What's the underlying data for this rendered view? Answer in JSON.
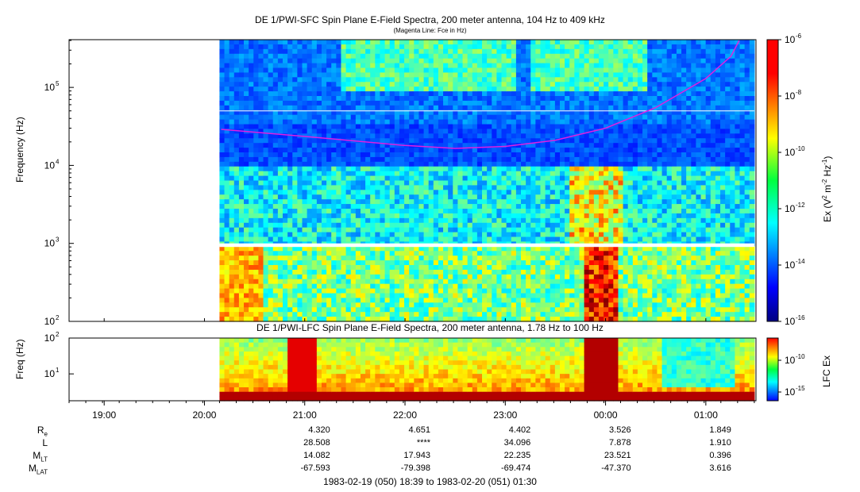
{
  "panels": {
    "sfc": {
      "title": "DE 1/PWI-SFC  Spin Plane E-Field Spectra, 200 meter antenna, 104 Hz to 409 kHz",
      "subtitle": "(Magenta Line: Fce in Hz)",
      "ylabel": "Frequency (Hz)",
      "colorbar_label_parts": [
        "Ex (V",
        "2",
        " m",
        "-2",
        " Hz",
        "-1",
        ")"
      ],
      "ytick_labels": [
        {
          "base": "10",
          "exp": "5",
          "value": 100000
        },
        {
          "base": "10",
          "exp": "4",
          "value": 10000
        },
        {
          "base": "10",
          "exp": "3",
          "value": 1000
        },
        {
          "base": "10",
          "exp": "2",
          "value": 100
        }
      ],
      "colorbar_ticks": [
        {
          "base": "10",
          "exp": "-6"
        },
        {
          "base": "10",
          "exp": "-8"
        },
        {
          "base": "10",
          "exp": "-10"
        },
        {
          "base": "10",
          "exp": "-12"
        },
        {
          "base": "10",
          "exp": "-14"
        },
        {
          "base": "10",
          "exp": "-16"
        }
      ]
    },
    "lfc": {
      "title": "DE 1/PWI-LFC  Spin Plane E-Field Spectra, 200 meter antenna, 1.78 Hz to 100 Hz",
      "ylabel": "Freq (Hz)",
      "colorbar_label": "LFC Ex",
      "ytick_labels": [
        {
          "base": "10",
          "exp": "2"
        },
        {
          "base": "10",
          "exp": "1"
        }
      ],
      "colorbar_ticks": [
        {
          "base": "10",
          "exp": "-10"
        },
        {
          "base": "10",
          "exp": "-15"
        }
      ]
    }
  },
  "time_axis": {
    "labels": [
      "19:00",
      "20:00",
      "21:00",
      "22:00",
      "23:00",
      "00:00",
      "01:00"
    ]
  },
  "ephemeris": {
    "rows": [
      {
        "label": "R",
        "sub": "e",
        "values": [
          "4.320",
          "4.651",
          "4.402",
          "3.526",
          "1.849"
        ]
      },
      {
        "label": "L",
        "sub": "",
        "values": [
          "28.508",
          "****",
          "34.096",
          "7.878",
          "1.910"
        ]
      },
      {
        "label": "M",
        "sub": "LT",
        "values": [
          "14.082",
          "17.943",
          "22.235",
          "23.521",
          "0.396"
        ]
      },
      {
        "label": "M",
        "sub": "LAT",
        "values": [
          "-67.593",
          "-79.398",
          "-69.474",
          "-47.370",
          "3.616"
        ]
      }
    ],
    "footer": "1983-02-19 (050) 18:39 to 1983-02-20 (051) 01:30"
  },
  "chart_data": [
    {
      "type": "heatmap",
      "title": "DE 1/PWI-SFC  Spin Plane E-Field Spectra, 200 meter antenna, 104 Hz to 409 kHz",
      "subtitle": "(Magenta Line: Fce in Hz)",
      "xlabel": "",
      "ylabel": "Frequency (Hz)",
      "y_scale": "log",
      "ylim": [
        100,
        409000
      ],
      "x_range": [
        "1983-02-19 18:39",
        "1983-02-20 01:30"
      ],
      "data_start": "1983-02-19 20:09",
      "data_end": "1983-02-20 01:29",
      "colorbar": {
        "label": "Ex (V^2 m^-2 Hz^-1)",
        "scale": "log",
        "range": [
          1e-16,
          1e-06
        ],
        "colormap": "jet"
      },
      "fce_line": {
        "color": "#e020e0",
        "times": [
          "20:10",
          "21:00",
          "22:00",
          "22:30",
          "23:00",
          "23:30",
          "00:00",
          "00:30",
          "01:00",
          "01:15",
          "01:20"
        ],
        "freq_hz": [
          29000,
          23500,
          18000,
          16500,
          17500,
          21000,
          30000,
          55000,
          130000,
          250000,
          400000
        ]
      },
      "features": [
        {
          "name": "data gap band",
          "freq_hz": [
            900,
            1000
          ],
          "color": "#ffffff"
        },
        {
          "name": "gap line",
          "freq_hz": 50000,
          "color": "#ffffff"
        }
      ]
    },
    {
      "type": "heatmap",
      "title": "DE 1/PWI-LFC  Spin Plane E-Field Spectra, 200 meter antenna, 1.78 Hz to 100 Hz",
      "xlabel": "",
      "ylabel": "Freq (Hz)",
      "y_scale": "log",
      "ylim": [
        1.78,
        100
      ],
      "x_range": [
        "1983-02-19 18:39",
        "1983-02-20 01:30"
      ],
      "data_start": "1983-02-19 20:09",
      "data_end": "1983-02-20 01:29",
      "colorbar": {
        "label": "LFC Ex",
        "scale": "log",
        "colormap": "jet"
      }
    }
  ]
}
